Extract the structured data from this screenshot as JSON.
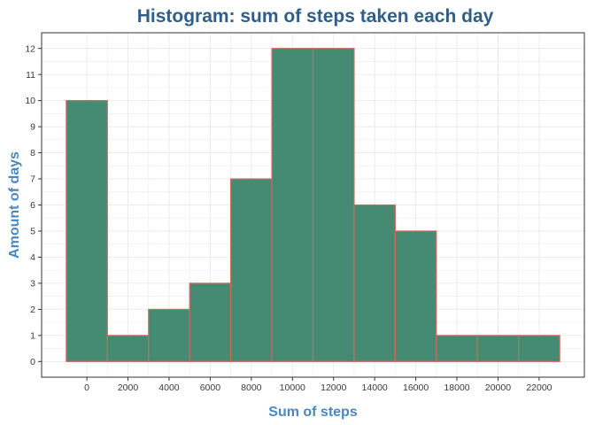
{
  "chart_data": {
    "type": "bar",
    "title": "Histogram: sum of steps taken each day",
    "xlabel": "Sum of steps",
    "ylabel": "Amount of days",
    "bins": [
      {
        "start": -1000,
        "end": 1000,
        "count": 10
      },
      {
        "start": 1000,
        "end": 3000,
        "count": 1
      },
      {
        "start": 3000,
        "end": 5000,
        "count": 2
      },
      {
        "start": 5000,
        "end": 7000,
        "count": 3
      },
      {
        "start": 7000,
        "end": 9000,
        "count": 7
      },
      {
        "start": 9000,
        "end": 11000,
        "count": 12
      },
      {
        "start": 11000,
        "end": 13000,
        "count": 12
      },
      {
        "start": 13000,
        "end": 15000,
        "count": 6
      },
      {
        "start": 15000,
        "end": 17000,
        "count": 5
      },
      {
        "start": 17000,
        "end": 19000,
        "count": 1
      },
      {
        "start": 19000,
        "end": 21000,
        "count": 1
      },
      {
        "start": 21000,
        "end": 23000,
        "count": 1
      }
    ],
    "xlim": [
      -2200,
      24200
    ],
    "ylim": [
      -0.6,
      12.6
    ],
    "x_ticks": [
      0,
      2000,
      4000,
      6000,
      8000,
      10000,
      12000,
      14000,
      16000,
      18000,
      20000,
      22000
    ],
    "y_ticks": [
      0,
      1,
      2,
      3,
      4,
      5,
      6,
      7,
      8,
      9,
      10,
      11,
      12
    ],
    "grid": true,
    "colors": {
      "bar_fill": "#458a73",
      "bar_border": "#d06a5c",
      "title": "#2e5f8a",
      "axis_title": "#4a86bf",
      "grid": "#ebebeb",
      "panel_border": "#333333"
    }
  }
}
